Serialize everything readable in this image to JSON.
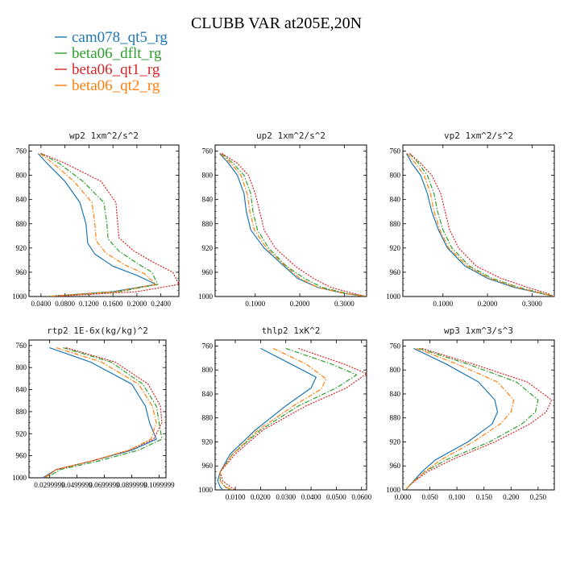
{
  "figure_title": "CLUBB VAR at205E,20N",
  "colors": {
    "cam078_qt5_rg": "#1f77b4",
    "beta06_dflt_rg": "#2ca02c",
    "beta06_qt1_rg": "#d62728",
    "beta06_qt2_rg": "#ff7f0e"
  },
  "chart_data": [
    {
      "type": "line",
      "title": "wp2  1xm^2/s^2",
      "xlim": [
        0.02,
        0.27
      ],
      "ylim": [
        1000,
        750
      ],
      "xticks": [
        "0.0400",
        "0.0800",
        "0.1200",
        "0.1600",
        "0.2000",
        "0.2400"
      ],
      "xtick_values": [
        0.04,
        0.08,
        0.12,
        0.16,
        0.2,
        0.24
      ],
      "yticks": [
        760,
        800,
        840,
        880,
        920,
        960,
        1000
      ],
      "series": [
        {
          "name": "cam078_qt5_rg",
          "style": "solid",
          "x": [
            0.035,
            0.05,
            0.08,
            0.105,
            0.115,
            0.118,
            0.13,
            0.16,
            0.2,
            0.232,
            0.16,
            0.05
          ],
          "y": [
            764,
            780,
            810,
            845,
            880,
            912,
            930,
            950,
            965,
            980,
            992,
            1000
          ]
        },
        {
          "name": "beta06_dflt_rg",
          "style": "dashdot",
          "x": [
            0.04,
            0.07,
            0.11,
            0.145,
            0.15,
            0.152,
            0.17,
            0.2,
            0.225,
            0.235,
            0.17,
            0.05
          ],
          "y": [
            764,
            780,
            810,
            845,
            880,
            905,
            925,
            945,
            960,
            980,
            992,
            1000
          ]
        },
        {
          "name": "beta06_qt1_rg",
          "style": "dotted",
          "x": [
            0.04,
            0.08,
            0.14,
            0.165,
            0.168,
            0.17,
            0.195,
            0.23,
            0.26,
            0.27,
            0.2,
            0.06
          ],
          "y": [
            764,
            780,
            810,
            845,
            880,
            903,
            925,
            945,
            960,
            980,
            992,
            1000
          ]
        },
        {
          "name": "beta06_qt2_rg",
          "style": "dashdot",
          "x": [
            0.038,
            0.06,
            0.095,
            0.125,
            0.13,
            0.132,
            0.148,
            0.18,
            0.212,
            0.232,
            0.165,
            0.05
          ],
          "y": [
            764,
            780,
            810,
            845,
            880,
            908,
            928,
            948,
            962,
            980,
            992,
            1000
          ]
        }
      ]
    },
    {
      "type": "line",
      "title": "up2  1xm^2/s^2",
      "xlim": [
        0.01,
        0.35
      ],
      "ylim": [
        1000,
        750
      ],
      "xticks": [
        "0.1000",
        "0.2000",
        "0.3000"
      ],
      "xtick_values": [
        0.1,
        0.2,
        0.3
      ],
      "yticks": [
        760,
        800,
        840,
        880,
        920,
        960,
        1000
      ],
      "series": [
        {
          "name": "cam078_qt5_rg",
          "style": "solid",
          "x": [
            0.02,
            0.04,
            0.06,
            0.075,
            0.08,
            0.09,
            0.12,
            0.165,
            0.195,
            0.24,
            0.3,
            0.35
          ],
          "y": [
            764,
            780,
            800,
            830,
            860,
            890,
            920,
            950,
            970,
            985,
            995,
            1000
          ]
        },
        {
          "name": "beta06_dflt_rg",
          "style": "dashdot",
          "x": [
            0.025,
            0.05,
            0.075,
            0.09,
            0.095,
            0.105,
            0.13,
            0.17,
            0.21,
            0.25,
            0.305,
            0.35
          ],
          "y": [
            764,
            780,
            800,
            830,
            860,
            890,
            920,
            950,
            970,
            985,
            995,
            1000
          ]
        },
        {
          "name": "beta06_qt1_rg",
          "style": "dotted",
          "x": [
            0.025,
            0.06,
            0.085,
            0.1,
            0.11,
            0.12,
            0.145,
            0.19,
            0.23,
            0.27,
            0.32,
            0.35
          ],
          "y": [
            764,
            780,
            800,
            830,
            860,
            890,
            920,
            950,
            970,
            985,
            995,
            1000
          ]
        },
        {
          "name": "beta06_qt2_rg",
          "style": "dashdot",
          "x": [
            0.022,
            0.045,
            0.068,
            0.082,
            0.088,
            0.098,
            0.125,
            0.168,
            0.2,
            0.24,
            0.3,
            0.35
          ],
          "y": [
            764,
            780,
            800,
            830,
            860,
            890,
            920,
            950,
            970,
            985,
            995,
            1000
          ]
        }
      ]
    },
    {
      "type": "line",
      "title": "vp2  1xm^2/s^2",
      "xlim": [
        0.01,
        0.35
      ],
      "ylim": [
        1000,
        750
      ],
      "xticks": [
        "0.1000",
        "0.2000",
        "0.3000"
      ],
      "xtick_values": [
        0.1,
        0.2,
        0.3
      ],
      "yticks": [
        760,
        800,
        840,
        880,
        920,
        960,
        1000
      ],
      "series": [
        {
          "name": "cam078_qt5_rg",
          "style": "solid",
          "x": [
            0.018,
            0.03,
            0.05,
            0.065,
            0.075,
            0.09,
            0.11,
            0.15,
            0.2,
            0.26,
            0.32,
            0.35
          ],
          "y": [
            764,
            780,
            800,
            830,
            860,
            890,
            920,
            950,
            970,
            985,
            995,
            1000
          ]
        },
        {
          "name": "beta06_dflt_rg",
          "style": "dashdot",
          "x": [
            0.025,
            0.045,
            0.065,
            0.08,
            0.088,
            0.1,
            0.12,
            0.16,
            0.21,
            0.27,
            0.325,
            0.35
          ],
          "y": [
            764,
            780,
            800,
            830,
            860,
            890,
            920,
            950,
            970,
            985,
            995,
            1000
          ]
        },
        {
          "name": "beta06_qt1_rg",
          "style": "dotted",
          "x": [
            0.025,
            0.05,
            0.075,
            0.095,
            0.105,
            0.115,
            0.135,
            0.175,
            0.23,
            0.29,
            0.335,
            0.35
          ],
          "y": [
            764,
            780,
            800,
            830,
            860,
            890,
            920,
            950,
            970,
            985,
            995,
            1000
          ]
        },
        {
          "name": "beta06_qt2_rg",
          "style": "dashdot",
          "x": [
            0.02,
            0.038,
            0.058,
            0.072,
            0.08,
            0.093,
            0.113,
            0.155,
            0.205,
            0.265,
            0.322,
            0.35
          ],
          "y": [
            764,
            780,
            800,
            830,
            860,
            890,
            920,
            950,
            970,
            985,
            995,
            1000
          ]
        }
      ]
    },
    {
      "type": "line",
      "title": "rtp2  1E-6x(kg/kg)^2",
      "xlim": [
        0.015,
        0.115
      ],
      "ylim": [
        1000,
        750
      ],
      "xticks": [
        "0.0299999",
        "0.0499999",
        "0.0699999",
        "0.0899999",
        "0.1099999"
      ],
      "xtick_values": [
        0.03,
        0.05,
        0.07,
        0.09,
        0.11
      ],
      "yticks": [
        760,
        800,
        840,
        880,
        920,
        960,
        1000
      ],
      "series": [
        {
          "name": "cam078_qt5_rg",
          "style": "solid",
          "x": [
            0.03,
            0.06,
            0.09,
            0.1,
            0.103,
            0.108,
            0.09,
            0.06,
            0.035,
            0.025
          ],
          "y": [
            764,
            790,
            830,
            870,
            900,
            930,
            950,
            970,
            985,
            1000
          ]
        },
        {
          "name": "beta06_dflt_rg",
          "style": "dashdot",
          "x": [
            0.04,
            0.075,
            0.098,
            0.108,
            0.11,
            0.112,
            0.095,
            0.065,
            0.038,
            0.028
          ],
          "y": [
            764,
            790,
            830,
            870,
            900,
            930,
            950,
            970,
            985,
            1000
          ]
        },
        {
          "name": "beta06_qt1_rg",
          "style": "dotted",
          "x": [
            0.042,
            0.078,
            0.102,
            0.111,
            0.112,
            0.106,
            0.088,
            0.06,
            0.035,
            0.027
          ],
          "y": [
            764,
            790,
            830,
            870,
            900,
            930,
            950,
            970,
            985,
            1000
          ]
        },
        {
          "name": "beta06_qt2_rg",
          "style": "dashdot",
          "x": [
            0.035,
            0.068,
            0.095,
            0.105,
            0.108,
            0.104,
            0.088,
            0.06,
            0.035,
            0.026
          ],
          "y": [
            764,
            790,
            830,
            870,
            900,
            930,
            950,
            970,
            985,
            1000
          ]
        }
      ]
    },
    {
      "type": "line",
      "title": "thlp2  1xK^2",
      "xlim": [
        0.002,
        0.062
      ],
      "ylim": [
        1000,
        750
      ],
      "xticks": [
        "0.0100",
        "0.0200",
        "0.0300",
        "0.0400",
        "0.0500",
        "0.0600"
      ],
      "xtick_values": [
        0.01,
        0.02,
        0.03,
        0.04,
        0.05,
        0.06
      ],
      "yticks": [
        760,
        800,
        840,
        880,
        920,
        960,
        1000
      ],
      "series": [
        {
          "name": "cam078_qt5_rg",
          "style": "solid",
          "x": [
            0.02,
            0.032,
            0.042,
            0.04,
            0.03,
            0.018,
            0.008,
            0.004,
            0.003,
            0.004,
            0.005
          ],
          "y": [
            764,
            790,
            812,
            830,
            860,
            900,
            940,
            970,
            985,
            995,
            1000
          ]
        },
        {
          "name": "beta06_dflt_rg",
          "style": "dashdot",
          "x": [
            0.03,
            0.048,
            0.058,
            0.05,
            0.035,
            0.02,
            0.009,
            0.004,
            0.004,
            0.006,
            0.008
          ],
          "y": [
            764,
            790,
            808,
            830,
            860,
            900,
            940,
            970,
            985,
            995,
            1000
          ]
        },
        {
          "name": "beta06_qt1_rg",
          "style": "dotted",
          "x": [
            0.035,
            0.053,
            0.062,
            0.054,
            0.038,
            0.021,
            0.01,
            0.004,
            0.005,
            0.008,
            0.01
          ],
          "y": [
            764,
            790,
            806,
            830,
            860,
            900,
            940,
            970,
            985,
            995,
            1000
          ]
        },
        {
          "name": "beta06_qt2_rg",
          "style": "dashdot",
          "x": [
            0.025,
            0.038,
            0.046,
            0.044,
            0.033,
            0.019,
            0.009,
            0.004,
            0.004,
            0.006,
            0.009
          ],
          "y": [
            764,
            790,
            815,
            832,
            860,
            900,
            940,
            970,
            985,
            995,
            1000
          ]
        }
      ]
    },
    {
      "type": "line",
      "title": "wp3  1xm^3/s^3",
      "xlim": [
        0.0,
        0.28
      ],
      "ylim": [
        1000,
        750
      ],
      "xticks": [
        "0.000",
        "0.050",
        "0.100",
        "0.150",
        "0.200",
        "0.250"
      ],
      "xtick_values": [
        0.0,
        0.05,
        0.1,
        0.15,
        0.2,
        0.25
      ],
      "yticks": [
        760,
        800,
        840,
        880,
        920,
        960,
        1000
      ],
      "series": [
        {
          "name": "cam078_qt5_rg",
          "style": "solid",
          "x": [
            0.02,
            0.08,
            0.14,
            0.17,
            0.175,
            0.165,
            0.12,
            0.06,
            0.035,
            0.015,
            0.005
          ],
          "y": [
            764,
            790,
            820,
            850,
            870,
            890,
            920,
            950,
            970,
            990,
            1000
          ]
        },
        {
          "name": "beta06_dflt_rg",
          "style": "dashdot",
          "x": [
            0.03,
            0.12,
            0.21,
            0.25,
            0.245,
            0.22,
            0.16,
            0.08,
            0.04,
            0.015,
            0.005
          ],
          "y": [
            764,
            790,
            820,
            850,
            870,
            890,
            920,
            950,
            970,
            990,
            1000
          ]
        },
        {
          "name": "beta06_qt1_rg",
          "style": "dotted",
          "x": [
            0.035,
            0.13,
            0.23,
            0.275,
            0.265,
            0.235,
            0.17,
            0.09,
            0.045,
            0.015,
            0.005
          ],
          "y": [
            764,
            790,
            820,
            850,
            870,
            890,
            920,
            950,
            970,
            990,
            1000
          ]
        },
        {
          "name": "beta06_qt2_rg",
          "style": "dashdot",
          "x": [
            0.025,
            0.1,
            0.175,
            0.205,
            0.2,
            0.18,
            0.13,
            0.07,
            0.04,
            0.015,
            0.005
          ],
          "y": [
            764,
            790,
            820,
            850,
            870,
            890,
            920,
            950,
            970,
            990,
            1000
          ]
        }
      ]
    }
  ]
}
